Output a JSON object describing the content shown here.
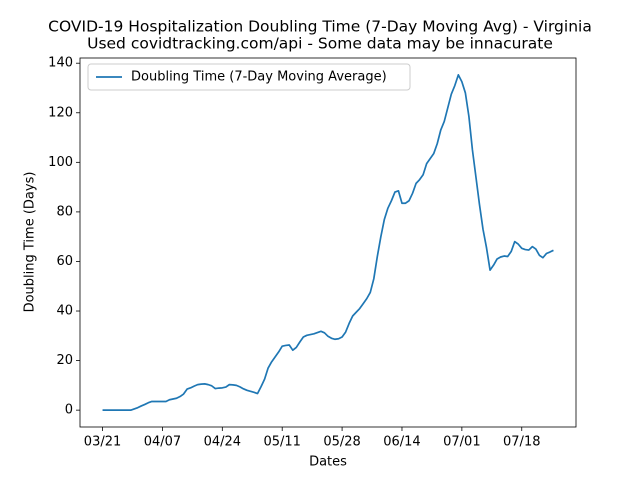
{
  "chart_data": {
    "type": "line",
    "title": "COVID-19 Hospitalization Doubling Time (7-Day Moving Avg) - Virginia",
    "subtitle": "Used covidtracking.com/api - Some data may be innacurate",
    "x_label": "Dates",
    "y_label": "Doubling Time (Days)",
    "x": [
      "03/21",
      "03/22",
      "03/23",
      "03/24",
      "03/25",
      "03/26",
      "03/27",
      "03/28",
      "03/29",
      "03/30",
      "03/31",
      "04/01",
      "04/02",
      "04/03",
      "04/04",
      "04/05",
      "04/06",
      "04/07",
      "04/08",
      "04/09",
      "04/10",
      "04/11",
      "04/12",
      "04/13",
      "04/14",
      "04/15",
      "04/16",
      "04/17",
      "04/18",
      "04/19",
      "04/20",
      "04/21",
      "04/22",
      "04/23",
      "04/24",
      "04/25",
      "04/26",
      "04/27",
      "04/28",
      "04/29",
      "04/30",
      "05/01",
      "05/02",
      "05/03",
      "05/04",
      "05/05",
      "05/06",
      "05/07",
      "05/08",
      "05/09",
      "05/10",
      "05/11",
      "05/12",
      "05/13",
      "05/14",
      "05/15",
      "05/16",
      "05/17",
      "05/18",
      "05/19",
      "05/20",
      "05/21",
      "05/22",
      "05/23",
      "05/24",
      "05/25",
      "05/26",
      "05/27",
      "05/28",
      "05/29",
      "05/30",
      "05/31",
      "06/01",
      "06/02",
      "06/03",
      "06/04",
      "06/05",
      "06/06",
      "06/07",
      "06/08",
      "06/09",
      "06/10",
      "06/11",
      "06/12",
      "06/13",
      "06/14",
      "06/15",
      "06/16",
      "06/17",
      "06/18",
      "06/19",
      "06/20",
      "06/21",
      "06/22",
      "06/23",
      "06/24",
      "06/25",
      "06/26",
      "06/27",
      "06/28",
      "06/29",
      "06/30",
      "07/01",
      "07/02",
      "07/03",
      "07/04",
      "07/05",
      "07/06",
      "07/07",
      "07/08",
      "07/09",
      "07/10",
      "07/11",
      "07/12",
      "07/13",
      "07/14",
      "07/15",
      "07/16",
      "07/17",
      "07/18",
      "07/19",
      "07/20",
      "07/21",
      "07/22",
      "07/23",
      "07/24",
      "07/25",
      "07/26",
      "07/27"
    ],
    "series": [
      {
        "name": "Doubling Time (7-Day Moving Average)",
        "color": "#1f77b4",
        "values": [
          0,
          0,
          0,
          0,
          0,
          0,
          0,
          0,
          0,
          0.5,
          1,
          1.7,
          2.3,
          3,
          3.5,
          3.5,
          3.5,
          3.5,
          3.5,
          4.2,
          4.5,
          4.8,
          5.5,
          6.5,
          8.5,
          9,
          9.7,
          10.3,
          10.5,
          10.6,
          10.3,
          9.8,
          8.7,
          8.9,
          9,
          9.3,
          10.3,
          10.2,
          10,
          9.4,
          8.6,
          8,
          7.6,
          7.2,
          6.7,
          9.5,
          12.5,
          17,
          19.5,
          21.5,
          23.5,
          25.8,
          26.1,
          26.3,
          24.2,
          25.3,
          27.5,
          29.5,
          30.2,
          30.5,
          30.8,
          31.3,
          31.8,
          31.2,
          29.8,
          29,
          28.6,
          28.8,
          29.5,
          31.5,
          35,
          38,
          39.5,
          41,
          43,
          45,
          47.5,
          53,
          62,
          70,
          77,
          81.5,
          84.5,
          88,
          88.5,
          83.5,
          83.5,
          84.5,
          87.5,
          91.5,
          93,
          95,
          99.5,
          101.5,
          103.5,
          107.5,
          113,
          116.5,
          122,
          127.5,
          131,
          135.3,
          132.5,
          128,
          118.5,
          105,
          94,
          83,
          73,
          65.5,
          56.5,
          58.5,
          61,
          61.8,
          62.2,
          62,
          64,
          68,
          67,
          65.3,
          64.8,
          64.6,
          66,
          65,
          62.5,
          61.5,
          63.2,
          63.8,
          64.5
        ]
      }
    ],
    "xticks": [
      "03/21",
      "04/07",
      "04/24",
      "05/11",
      "05/28",
      "06/14",
      "07/01",
      "07/18"
    ],
    "ylim": [
      -6.8,
      142.1
    ],
    "yticks": [
      0,
      20,
      40,
      60,
      80,
      100,
      120,
      140
    ],
    "legend": "upper left"
  }
}
